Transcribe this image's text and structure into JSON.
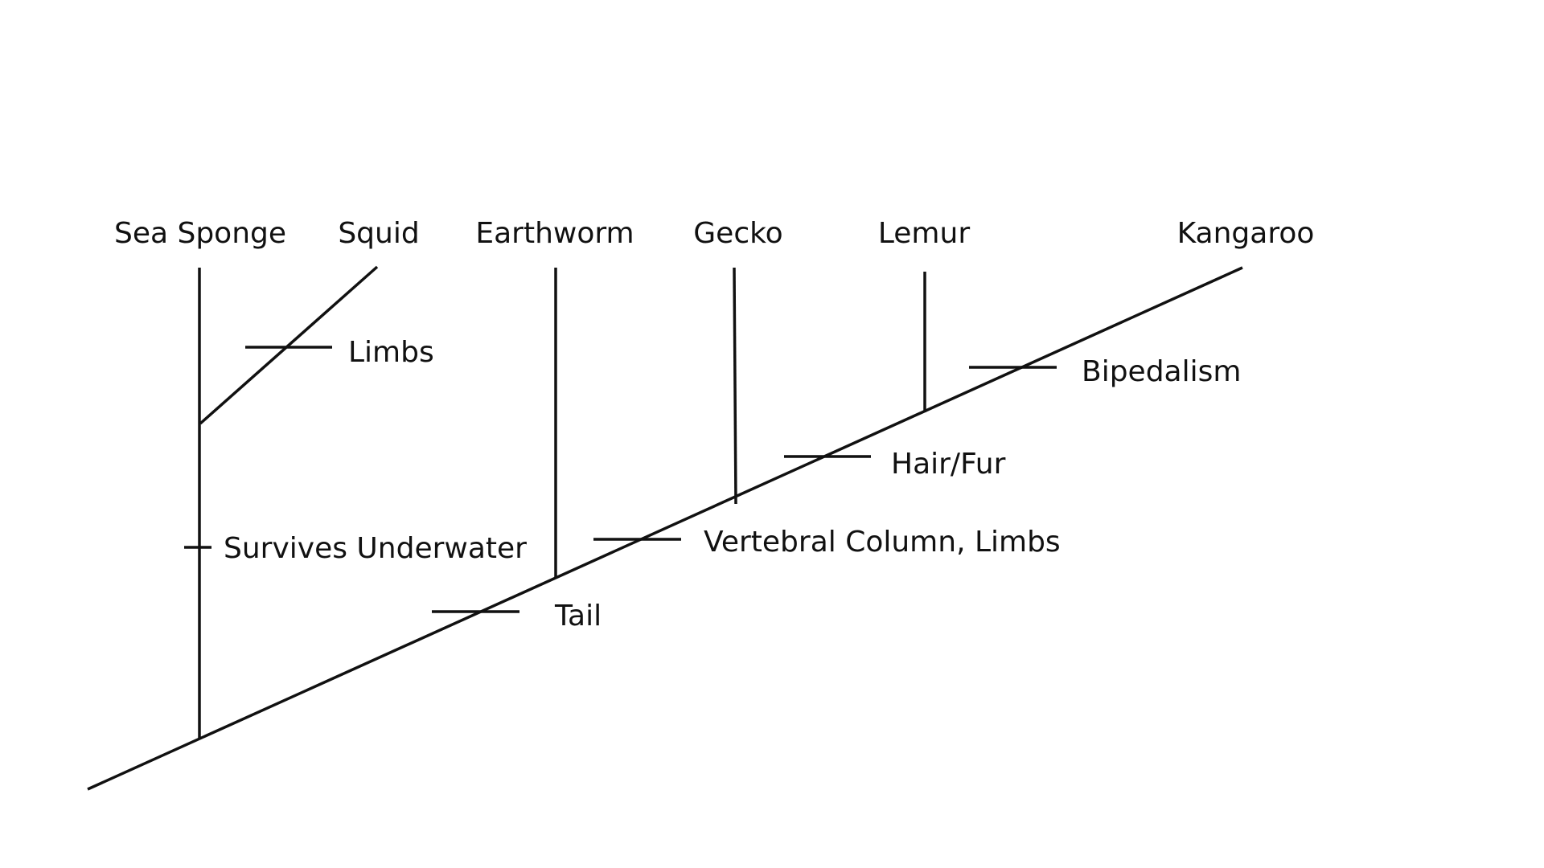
{
  "taxa": [
    {
      "id": "sea-sponge",
      "label": "Sea Sponge"
    },
    {
      "id": "squid",
      "label": "Squid"
    },
    {
      "id": "earthworm",
      "label": "Earthworm"
    },
    {
      "id": "gecko",
      "label": "Gecko"
    },
    {
      "id": "lemur",
      "label": "Lemur"
    },
    {
      "id": "kangaroo",
      "label": "Kangaroo"
    }
  ],
  "traits": [
    {
      "id": "limbs",
      "label": "Limbs"
    },
    {
      "id": "survives-underwater",
      "label": "Survives Underwater"
    },
    {
      "id": "tail",
      "label": "Tail"
    },
    {
      "id": "vertebral-column-limbs",
      "label": "Vertebral Column, Limbs"
    },
    {
      "id": "hair-fur",
      "label": "Hair/Fur"
    },
    {
      "id": "bipedalism",
      "label": "Bipedalism"
    }
  ],
  "colors": {
    "line": "#111111",
    "background": "#ffffff"
  }
}
